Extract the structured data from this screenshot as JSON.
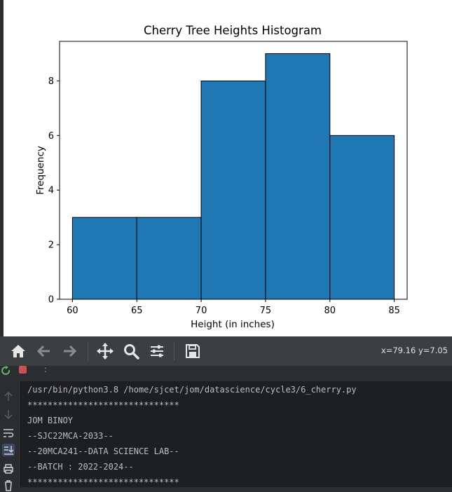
{
  "chart_data": {
    "type": "bar",
    "title": "Cherry Tree Heights Histogram",
    "xlabel": "Height (in inches)",
    "ylabel": "Frequency",
    "bins": [
      [
        60,
        65
      ],
      [
        65,
        70
      ],
      [
        70,
        75
      ],
      [
        75,
        80
      ],
      [
        80,
        85
      ]
    ],
    "values": [
      3,
      3,
      8,
      9,
      6
    ],
    "xlim": [
      59,
      86
    ],
    "ylim": [
      0,
      9.45
    ],
    "xticks": [
      "60",
      "65",
      "70",
      "75",
      "80",
      "85"
    ],
    "yticks": [
      "0",
      "2",
      "4",
      "6",
      "8"
    ],
    "bar_color": "#1f77b4",
    "edge_color": "#000000",
    "grid": false
  },
  "toolbar": {
    "buttons": [
      "home-icon",
      "back-arrow-icon",
      "forward-arrow-icon",
      "pan-icon",
      "zoom-icon",
      "configure-subplots-icon",
      "save-icon"
    ],
    "coordinates": "x=79.16 y=7.05"
  },
  "console": {
    "command_line": "/usr/bin/python3.8 /home/sjcet/jom/datascience/cycle3/6_cherry.py",
    "lines": [
      "******************************",
      "JOM BINOY",
      "--SJC22MCA-2033--",
      "--20MCA241--DATA SCIENCE LAB--",
      "--BATCH : 2022-2024--",
      "******************************"
    ],
    "strip_menu": ":"
  },
  "colors": {
    "toolbar_bg": "#3c3f41",
    "console_bg": "#1e1f22",
    "console_text": "#bcbec4",
    "rerun_green": "#5fb865",
    "stop_red": "#c75450"
  }
}
